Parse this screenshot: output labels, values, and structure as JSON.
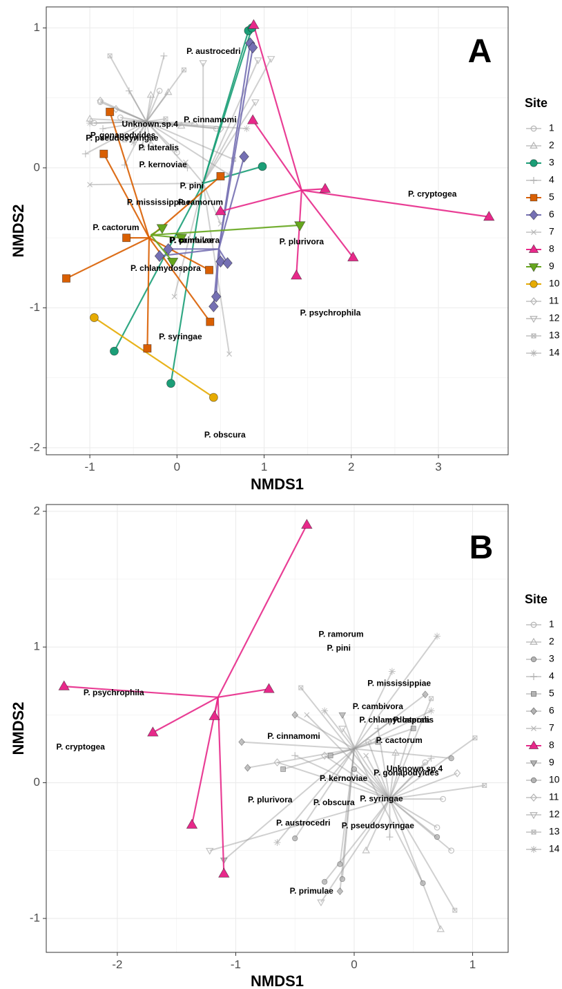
{
  "chart_data": [
    {
      "panel": "A",
      "type": "scatter",
      "xlabel": "NMDS1",
      "ylabel": "NMDS2",
      "xlim": [
        -1.5,
        3.8
      ],
      "ylim": [
        -2.05,
        1.15
      ],
      "x_ticks": [
        -1,
        0,
        1,
        2,
        3
      ],
      "y_ticks": [
        -2,
        -1,
        0,
        1
      ],
      "grid": true,
      "legend_title": "Site",
      "legend_position": "right",
      "site_colors": {
        "3": "#1b9e77",
        "5": "#d95f02",
        "6": "#7570b3",
        "8": "#e7298a",
        "9": "#66a61e",
        "10": "#e6ab02"
      },
      "site_shapes": {
        "1": "circle-open",
        "2": "triangle-open",
        "3": "circle",
        "4": "plus",
        "5": "square",
        "6": "diamond",
        "7": "x",
        "8": "triangle",
        "9": "triangle-down",
        "10": "circle",
        "11": "diamond-open",
        "12": "triangle-down-open",
        "13": "square-x",
        "14": "asterisk"
      },
      "legend_sites": [
        "1",
        "2",
        "3",
        "4",
        "5",
        "6",
        "7",
        "8",
        "9",
        "10",
        "11",
        "12",
        "13",
        "14"
      ],
      "highlight_sites": [
        "3",
        "5",
        "6",
        "8",
        "9",
        "10"
      ],
      "sites": [
        {
          "site": "3",
          "centroid": [
            0.3,
            -0.11
          ],
          "points": [
            [
              0.82,
              0.98
            ],
            [
              0.86,
              1.0
            ],
            [
              0.98,
              0.01
            ],
            [
              -0.72,
              -1.31
            ],
            [
              -0.07,
              -1.54
            ]
          ]
        },
        {
          "site": "5",
          "centroid": [
            -0.32,
            -0.5
          ],
          "points": [
            [
              -0.77,
              0.4
            ],
            [
              -0.84,
              0.1
            ],
            [
              0.5,
              -0.06
            ],
            [
              -0.58,
              -0.5
            ],
            [
              -1.27,
              -0.79
            ],
            [
              0.37,
              -0.73
            ],
            [
              0.38,
              -1.1
            ],
            [
              -0.34,
              -1.29
            ]
          ]
        },
        {
          "site": "6",
          "centroid": [
            0.48,
            -0.58
          ],
          "points": [
            [
              0.84,
              0.89
            ],
            [
              0.87,
              0.86
            ],
            [
              0.77,
              0.08
            ],
            [
              -0.1,
              -0.58
            ],
            [
              -0.2,
              -0.63
            ],
            [
              0.5,
              -0.67
            ],
            [
              0.58,
              -0.68
            ],
            [
              0.45,
              -0.92
            ],
            [
              0.42,
              -0.99
            ]
          ]
        },
        {
          "site": "8",
          "centroid": [
            1.43,
            -0.16
          ],
          "points": [
            [
              0.88,
              1.02
            ],
            [
              0.87,
              0.34
            ],
            [
              0.5,
              -0.31
            ],
            [
              1.7,
              -0.15
            ],
            [
              3.58,
              -0.35
            ],
            [
              2.02,
              -0.64
            ],
            [
              1.37,
              -0.77
            ]
          ]
        },
        {
          "site": "9",
          "centroid": [
            -0.3,
            -0.48
          ],
          "points": [
            [
              -0.17,
              -0.43
            ],
            [
              1.41,
              -0.41
            ],
            [
              0.05,
              -0.5
            ],
            [
              -0.05,
              -0.67
            ]
          ]
        },
        {
          "site": "10",
          "centroid": [
            -0.95,
            -1.07
          ],
          "points": [
            [
              -0.95,
              -1.07
            ],
            [
              0.42,
              -1.64
            ]
          ]
        }
      ],
      "grey_sites": [
        {
          "site": "1",
          "centroid": [
            -0.35,
            0.33
          ],
          "points": [
            [
              -0.88,
              0.47
            ],
            [
              -0.65,
              0.36
            ],
            [
              -0.95,
              0.32
            ],
            [
              0.45,
              0.28
            ],
            [
              -0.2,
              0.55
            ],
            [
              0.0,
              0.11
            ]
          ]
        },
        {
          "site": "2",
          "centroid": [
            -0.35,
            0.33
          ],
          "points": [
            [
              -0.3,
              0.52
            ],
            [
              -1.0,
              0.35
            ],
            [
              -0.1,
              0.54
            ],
            [
              -0.3,
              0.17
            ],
            [
              0.05,
              0.3
            ],
            [
              0.2,
              0.32
            ]
          ]
        },
        {
          "site": "4",
          "centroid": [
            -0.35,
            0.33
          ],
          "points": [
            [
              -0.15,
              0.8
            ],
            [
              -0.55,
              0.55
            ],
            [
              -0.85,
              0.28
            ],
            [
              -1.05,
              0.1
            ],
            [
              -0.6,
              0.02
            ],
            [
              0.12,
              0.0
            ]
          ]
        },
        {
          "site": "7",
          "centroid": [
            0.3,
            -0.11
          ],
          "points": [
            [
              -1.0,
              -0.12
            ],
            [
              0.1,
              0.04
            ],
            [
              0.6,
              -1.33
            ],
            [
              -0.03,
              -0.92
            ],
            [
              0.5,
              -0.4
            ]
          ]
        },
        {
          "site": "11",
          "centroid": [
            -0.35,
            0.33
          ],
          "points": [
            [
              -0.88,
              0.48
            ],
            [
              -0.7,
              0.42
            ],
            [
              0.5,
              0.28
            ],
            [
              -0.4,
              0.15
            ]
          ]
        },
        {
          "site": "12",
          "centroid": [
            0.3,
            -0.11
          ],
          "points": [
            [
              0.3,
              0.75
            ],
            [
              0.9,
              0.47
            ],
            [
              1.08,
              0.78
            ],
            [
              0.93,
              0.77
            ]
          ]
        },
        {
          "site": "13",
          "centroid": [
            -0.35,
            0.33
          ],
          "points": [
            [
              -0.77,
              0.8
            ],
            [
              0.08,
              0.7
            ],
            [
              -0.13,
              0.35
            ],
            [
              0.65,
              0.06
            ],
            [
              -0.6,
              0.2
            ]
          ]
        },
        {
          "site": "14",
          "centroid": [
            -0.35,
            0.33
          ],
          "points": [
            [
              -1.0,
              0.32
            ],
            [
              -0.5,
              0.18
            ],
            [
              0.6,
              -0.05
            ],
            [
              0.8,
              0.28
            ]
          ]
        }
      ],
      "labels": [
        {
          "text": "P. austrocedri",
          "x": 0.42,
          "y": 0.83
        },
        {
          "text": "Unknown.sp.4",
          "x": -0.31,
          "y": 0.31
        },
        {
          "text": "P. cinnamomi",
          "x": 0.38,
          "y": 0.34
        },
        {
          "text": "P. gonapodyides",
          "x": -0.62,
          "y": 0.23
        },
        {
          "text": "P. pseudosyringae",
          "x": -0.63,
          "y": 0.21
        },
        {
          "text": "P. lateralis",
          "x": -0.21,
          "y": 0.14
        },
        {
          "text": "P. kernoviae",
          "x": -0.16,
          "y": 0.02
        },
        {
          "text": "P. pini",
          "x": 0.17,
          "y": -0.13
        },
        {
          "text": "P. cryptogea",
          "x": 2.93,
          "y": -0.19
        },
        {
          "text": "P. mississippiae",
          "x": -0.21,
          "y": -0.25
        },
        {
          "text": "P. ramorum",
          "x": 0.27,
          "y": -0.25
        },
        {
          "text": "P. cactorum",
          "x": -0.7,
          "y": -0.43
        },
        {
          "text": "P. cambivora",
          "x": 0.2,
          "y": -0.52
        },
        {
          "text": "P. primulae",
          "x": 0.17,
          "y": -0.52
        },
        {
          "text": "P. plurivora",
          "x": 1.43,
          "y": -0.53
        },
        {
          "text": "P. chlamydospora",
          "x": -0.13,
          "y": -0.72
        },
        {
          "text": "P. psychrophila",
          "x": 1.76,
          "y": -1.04
        },
        {
          "text": "P. syringae",
          "x": 0.04,
          "y": -1.21
        },
        {
          "text": "P. obscura",
          "x": 0.55,
          "y": -1.91
        }
      ]
    },
    {
      "panel": "B",
      "type": "scatter",
      "xlabel": "NMDS1",
      "ylabel": "NMDS2",
      "xlim": [
        -2.6,
        1.3
      ],
      "ylim": [
        -1.25,
        2.05
      ],
      "x_ticks": [
        -2,
        -1,
        0,
        1
      ],
      "y_ticks": [
        -1,
        0,
        1,
        2
      ],
      "grid": true,
      "legend_title": "Site",
      "legend_position": "right",
      "site_colors": {
        "8": "#e7298a"
      },
      "site_shapes": {
        "1": "circle-open",
        "2": "triangle-open",
        "3": "circle",
        "4": "plus",
        "5": "square",
        "6": "diamond",
        "7": "x",
        "8": "triangle",
        "9": "triangle-down",
        "10": "circle",
        "11": "diamond-open",
        "12": "triangle-down-open",
        "13": "square-x",
        "14": "asterisk"
      },
      "legend_sites": [
        "1",
        "2",
        "3",
        "4",
        "5",
        "6",
        "7",
        "8",
        "9",
        "10",
        "11",
        "12",
        "13",
        "14"
      ],
      "highlight_sites": [
        "8"
      ],
      "sites": [
        {
          "site": "8",
          "centroid": [
            -1.15,
            0.63
          ],
          "points": [
            [
              -0.4,
              1.9
            ],
            [
              -2.45,
              0.71
            ],
            [
              -0.72,
              0.69
            ],
            [
              -1.7,
              0.37
            ],
            [
              -1.18,
              0.49
            ],
            [
              -1.37,
              -0.31
            ],
            [
              -1.1,
              -0.67
            ]
          ]
        }
      ],
      "grey_sites": [
        {
          "site": "1",
          "centroid": [
            0.3,
            -0.12
          ],
          "points": [
            [
              0.7,
              -0.33
            ],
            [
              0.75,
              -0.12
            ],
            [
              0.82,
              -0.5
            ],
            [
              0.6,
              0.15
            ],
            [
              0.12,
              0.3
            ]
          ]
        },
        {
          "site": "2",
          "centroid": [
            0.3,
            -0.12
          ],
          "points": [
            [
              0.73,
              -1.08
            ],
            [
              0.35,
              0.22
            ],
            [
              0.1,
              -0.5
            ]
          ]
        },
        {
          "site": "3",
          "centroid": [
            0.0,
            0.25
          ],
          "points": [
            [
              -0.5,
              -0.41
            ],
            [
              -0.1,
              -0.71
            ],
            [
              0.58,
              -0.74
            ],
            [
              0.82,
              0.18
            ],
            [
              -0.12,
              -0.6
            ]
          ]
        },
        {
          "site": "4",
          "centroid": [
            0.3,
            -0.12
          ],
          "points": [
            [
              0.65,
              0.18
            ],
            [
              -0.5,
              0.2
            ],
            [
              0.2,
              0.4
            ],
            [
              0.3,
              -0.4
            ]
          ]
        },
        {
          "site": "5",
          "centroid": [
            0.0,
            0.25
          ],
          "points": [
            [
              -0.6,
              0.1
            ],
            [
              -0.2,
              0.2
            ],
            [
              0.2,
              0.3
            ],
            [
              0.5,
              0.4
            ]
          ]
        },
        {
          "site": "6",
          "centroid": [
            0.0,
            0.25
          ],
          "points": [
            [
              -0.95,
              0.3
            ],
            [
              -0.9,
              0.11
            ],
            [
              -0.5,
              0.5
            ],
            [
              0.6,
              0.65
            ],
            [
              -0.12,
              -0.8
            ]
          ]
        },
        {
          "site": "7",
          "centroid": [
            0.3,
            -0.12
          ],
          "points": [
            [
              -0.4,
              0.5
            ],
            [
              0.5,
              0.45
            ],
            [
              0.1,
              0.2
            ]
          ]
        },
        {
          "site": "9",
          "centroid": [
            0.0,
            0.25
          ],
          "points": [
            [
              -1.1,
              -0.57
            ],
            [
              -0.1,
              0.5
            ],
            [
              0.3,
              0.45
            ]
          ]
        },
        {
          "site": "10",
          "centroid": [
            0.3,
            -0.12
          ],
          "points": [
            [
              0.7,
              -0.4
            ],
            [
              -0.25,
              -0.73
            ],
            [
              0.0,
              0.1
            ]
          ]
        },
        {
          "site": "11",
          "centroid": [
            0.3,
            -0.12
          ],
          "points": [
            [
              0.87,
              0.07
            ],
            [
              -0.65,
              0.15
            ],
            [
              -0.25,
              0.2
            ]
          ]
        },
        {
          "site": "12",
          "centroid": [
            0.3,
            -0.12
          ],
          "points": [
            [
              -1.22,
              -0.5
            ],
            [
              -0.28,
              -0.88
            ],
            [
              -0.1,
              0.4
            ]
          ]
        },
        {
          "site": "13",
          "centroid": [
            0.3,
            -0.12
          ],
          "points": [
            [
              1.1,
              -0.02
            ],
            [
              0.85,
              -0.94
            ],
            [
              1.02,
              0.33
            ],
            [
              -0.45,
              0.7
            ],
            [
              0.65,
              0.62
            ]
          ]
        },
        {
          "site": "14",
          "centroid": [
            0.0,
            0.25
          ],
          "points": [
            [
              0.7,
              1.08
            ],
            [
              0.32,
              0.82
            ],
            [
              -0.25,
              0.53
            ],
            [
              0.65,
              0.53
            ],
            [
              -0.65,
              -0.44
            ]
          ]
        }
      ],
      "labels": [
        {
          "text": "P. ramorum",
          "x": -0.11,
          "y": 1.09
        },
        {
          "text": "P. pini",
          "x": -0.13,
          "y": 0.99
        },
        {
          "text": "P. mississippiae",
          "x": 0.38,
          "y": 0.73
        },
        {
          "text": "P. cambivora",
          "x": 0.2,
          "y": 0.56
        },
        {
          "text": "P. chlamydospora",
          "x": 0.34,
          "y": 0.46
        },
        {
          "text": "P. lateralis",
          "x": 0.5,
          "y": 0.46
        },
        {
          "text": "P. cinnamomi",
          "x": -0.51,
          "y": 0.34
        },
        {
          "text": "P. cactorum",
          "x": 0.38,
          "y": 0.31
        },
        {
          "text": "P. cryptogea",
          "x": -2.31,
          "y": 0.26
        },
        {
          "text": "Unknown.sp.4",
          "x": 0.51,
          "y": 0.1
        },
        {
          "text": "P. gonapodyides",
          "x": 0.44,
          "y": 0.07
        },
        {
          "text": "P. kernoviae",
          "x": -0.09,
          "y": 0.03
        },
        {
          "text": "P. plurivora",
          "x": -0.71,
          "y": -0.13
        },
        {
          "text": "P. obscura",
          "x": -0.17,
          "y": -0.15
        },
        {
          "text": "P. syringae",
          "x": 0.23,
          "y": -0.12
        },
        {
          "text": "P. austrocedri",
          "x": -0.43,
          "y": -0.3
        },
        {
          "text": "P. pseudosyringae",
          "x": 0.2,
          "y": -0.32
        },
        {
          "text": "P. psychrophila",
          "x": -2.03,
          "y": 0.66
        },
        {
          "text": "P. primulae",
          "x": -0.36,
          "y": -0.8
        }
      ]
    }
  ]
}
